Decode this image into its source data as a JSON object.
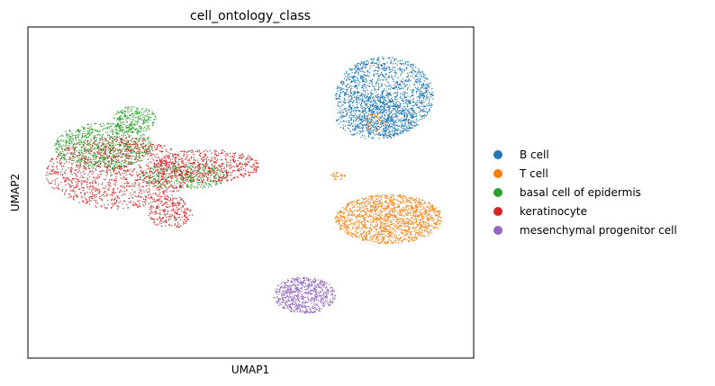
{
  "chart_data": {
    "type": "scatter",
    "title": "cell_ontology_class",
    "xlabel": "UMAP1",
    "ylabel": "UMAP2",
    "grid": false,
    "ticks": false,
    "legend_position": "right",
    "xlim": [
      0,
      100
    ],
    "ylim": [
      0,
      100
    ],
    "series": [
      {
        "name": "B cell",
        "color": "#1f77b4",
        "clusters": [
          {
            "cx": 80,
            "cy": 79,
            "rx": 11,
            "ry": 12,
            "n": 1500
          },
          {
            "cx": 78,
            "cy": 73,
            "rx": 9,
            "ry": 7,
            "n": 500
          }
        ]
      },
      {
        "name": "T cell",
        "color": "#ff7f0e",
        "clusters": [
          {
            "cx": 81,
            "cy": 42,
            "rx": 12,
            "ry": 7.5,
            "n": 1500
          },
          {
            "cx": 69.5,
            "cy": 55,
            "rx": 1.6,
            "ry": 1.2,
            "n": 30
          },
          {
            "cx": 78,
            "cy": 71,
            "rx": 2.5,
            "ry": 3,
            "n": 40
          }
        ]
      },
      {
        "name": "basal cell of epidermis",
        "color": "#2ca02c",
        "clusters": [
          {
            "cx": 17,
            "cy": 64,
            "rx": 11,
            "ry": 7,
            "n": 900
          },
          {
            "cx": 35,
            "cy": 55,
            "rx": 10,
            "ry": 4,
            "n": 400
          },
          {
            "cx": 24,
            "cy": 72,
            "rx": 5,
            "ry": 4,
            "n": 250
          }
        ]
      },
      {
        "name": "keratinocyte",
        "color": "#d62728",
        "clusters": [
          {
            "cx": 20,
            "cy": 56,
            "rx": 16,
            "ry": 11,
            "n": 1300
          },
          {
            "cx": 40,
            "cy": 58,
            "rx": 12,
            "ry": 5,
            "n": 600
          },
          {
            "cx": 32,
            "cy": 44,
            "rx": 5,
            "ry": 5,
            "n": 250
          }
        ]
      },
      {
        "name": "mesenchymal progenitor cell",
        "color": "#9467bd",
        "clusters": [
          {
            "cx": 62,
            "cy": 19,
            "rx": 7,
            "ry": 5.5,
            "n": 700
          }
        ]
      }
    ]
  }
}
